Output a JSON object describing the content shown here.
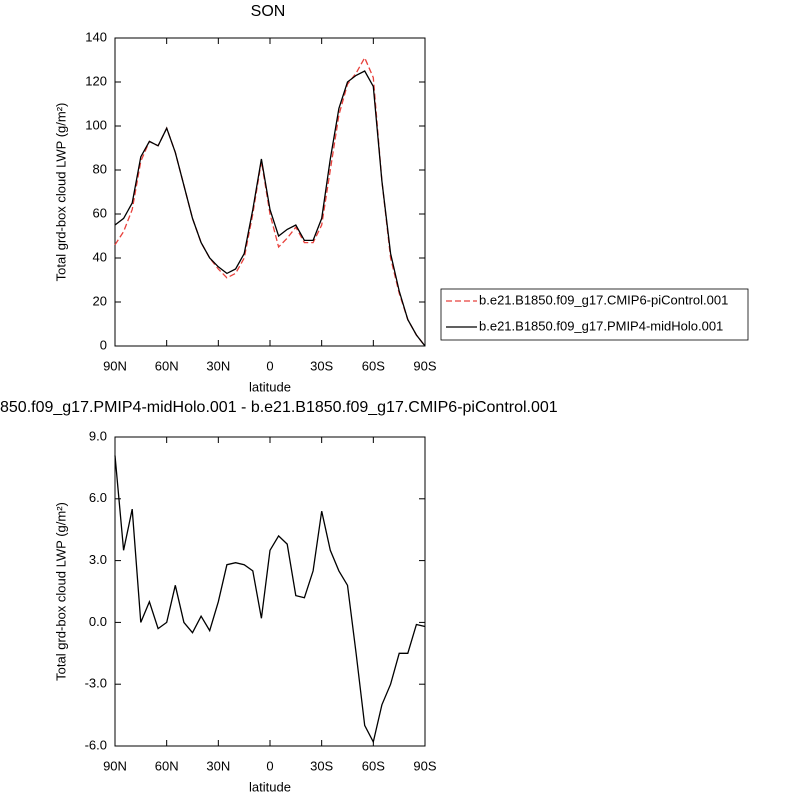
{
  "chart_data": [
    {
      "type": "line",
      "title": "SON",
      "xlabel": "latitude",
      "ylabel": "Total grd-box cloud LWP (g/m²)",
      "x": [
        90,
        85,
        80,
        75,
        70,
        65,
        60,
        55,
        50,
        45,
        40,
        35,
        30,
        25,
        20,
        15,
        10,
        5,
        0,
        -5,
        -10,
        -15,
        -20,
        -25,
        -30,
        -35,
        -40,
        -45,
        -50,
        -55,
        -60,
        -65,
        -70,
        -75,
        -80,
        -85,
        -90
      ],
      "series": [
        {
          "name": "b.e21.B1850.f09_g17.CMIP6-piControl.001",
          "color": "#e8413c",
          "dash": true,
          "values": [
            46,
            52,
            62,
            84,
            93,
            91,
            99,
            88,
            73,
            58,
            47,
            40,
            35,
            31,
            33,
            40,
            60,
            84,
            60,
            45,
            49,
            54,
            47,
            47,
            55,
            80,
            105,
            119,
            124,
            131,
            122,
            75,
            40,
            24,
            12,
            5,
            0
          ]
        },
        {
          "name": "b.e21.B1850.f09_g17.PMIP4-midHolo.001",
          "color": "#000000",
          "dash": false,
          "values": [
            55,
            58,
            65,
            86,
            93,
            91,
            99,
            88,
            73,
            58,
            47,
            40,
            36,
            33,
            35,
            42,
            62,
            85,
            62,
            50,
            53,
            55,
            48,
            48,
            58,
            85,
            108,
            120,
            123,
            125,
            118,
            75,
            42,
            25,
            12,
            5,
            0
          ]
        }
      ],
      "xlim": [
        90,
        -90
      ],
      "xticks": [
        {
          "value": 90,
          "label": "90N"
        },
        {
          "value": 60,
          "label": "60N"
        },
        {
          "value": 30,
          "label": "30N"
        },
        0,
        {
          "value": -30,
          "label": "30S"
        },
        {
          "value": -60,
          "label": "60S"
        },
        {
          "value": -90,
          "label": "90S"
        }
      ],
      "ylim": [
        0,
        140
      ],
      "yticks": [
        0,
        20,
        40,
        60,
        80,
        100,
        120,
        140
      ],
      "legend": "outside-right"
    },
    {
      "type": "line",
      "title": "850.f09_g17.PMIP4-midHolo.001 - b.e21.B1850.f09_g17.CMIP6-piControl.001",
      "xlabel": "latitude",
      "ylabel": "Total grd-box cloud LWP (g/m²)",
      "x": [
        90,
        85,
        80,
        75,
        70,
        65,
        60,
        55,
        50,
        45,
        40,
        35,
        30,
        25,
        20,
        15,
        10,
        5,
        0,
        -5,
        -10,
        -15,
        -20,
        -25,
        -30,
        -35,
        -40,
        -45,
        -50,
        -55,
        -60,
        -65,
        -70,
        -75,
        -80,
        -85,
        -90
      ],
      "series": [
        {
          "color": "#000000",
          "dash": false,
          "values": [
            8.1,
            3.5,
            5.5,
            0.0,
            1.0,
            -0.3,
            0.0,
            1.8,
            0.0,
            -0.5,
            0.3,
            -0.4,
            1.0,
            2.8,
            2.9,
            2.8,
            2.5,
            0.2,
            3.5,
            4.2,
            3.8,
            1.3,
            1.2,
            2.5,
            5.4,
            3.5,
            2.5,
            1.8,
            -1.5,
            -5.0,
            -5.8,
            -4.0,
            -3.0,
            -1.5,
            -1.5,
            -0.1,
            -0.2
          ]
        }
      ],
      "xlim": [
        90,
        -90
      ],
      "xticks": [
        {
          "value": 90,
          "label": "90N"
        },
        {
          "value": 60,
          "label": "60N"
        },
        {
          "value": 30,
          "label": "30N"
        },
        0,
        {
          "value": -30,
          "label": "30S"
        },
        {
          "value": -60,
          "label": "60S"
        },
        {
          "value": -90,
          "label": "90S"
        }
      ],
      "ylim": [
        -6,
        9
      ],
      "yticks": [
        {
          "value": -6,
          "label": "-6.0"
        },
        {
          "value": -3,
          "label": "-3.0"
        },
        {
          "value": 0,
          "label": "0.0"
        },
        {
          "value": 3,
          "label": "3.0"
        },
        {
          "value": 6,
          "label": "6.0"
        },
        {
          "value": 9,
          "label": "9.0"
        }
      ]
    }
  ]
}
